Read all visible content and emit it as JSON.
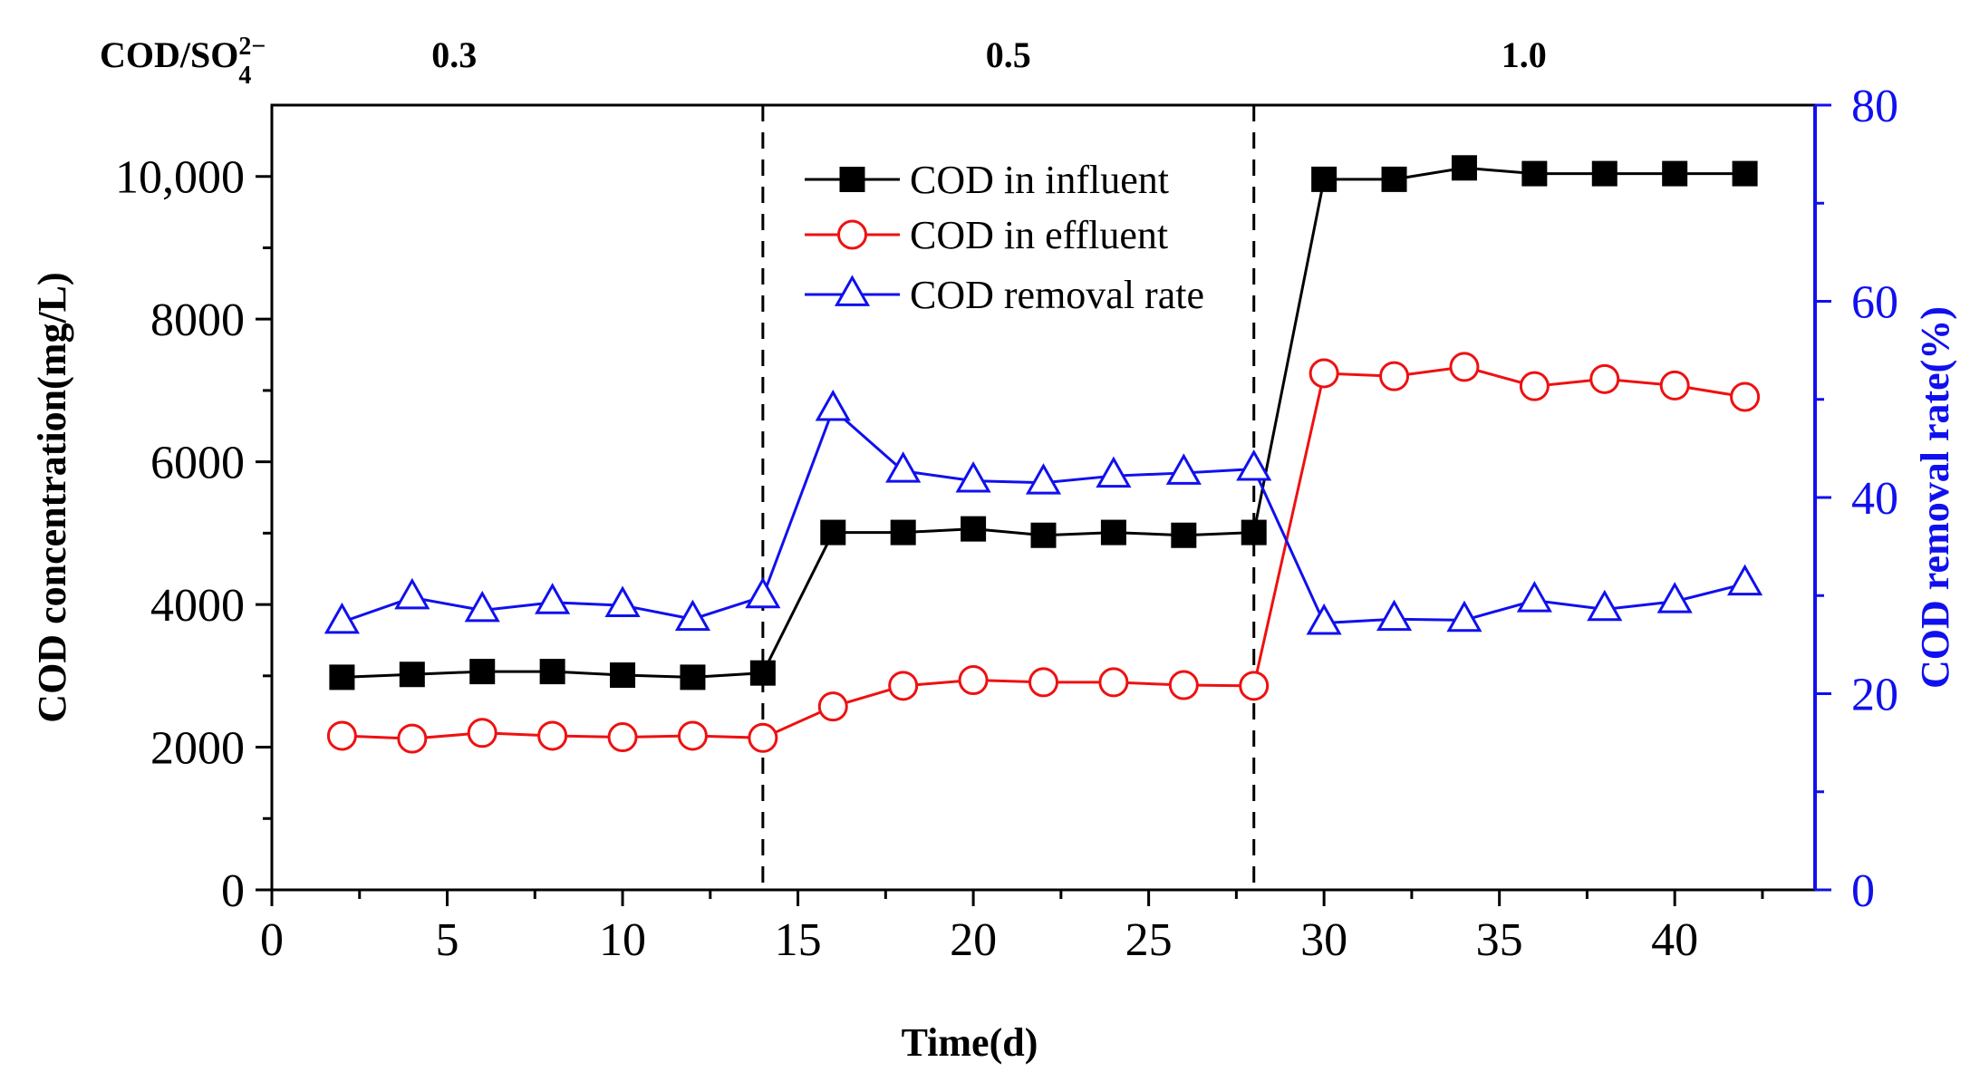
{
  "chart_data": {
    "type": "line",
    "xlabel": "Time(d)",
    "ylabel": "COD concentration(mg/L)",
    "y2label": "COD removal rate(%)",
    "xlim": [
      0,
      44
    ],
    "ylim": [
      0,
      11000
    ],
    "y2lim": [
      0,
      80
    ],
    "x_ticks": [
      "0",
      "5",
      "10",
      "15",
      "20",
      "25",
      "30",
      "35",
      "40"
    ],
    "y_ticks": [
      "0",
      "2000",
      "4000",
      "6000",
      "8000",
      "10,000"
    ],
    "y2_ticks": [
      "0",
      "20",
      "40",
      "60",
      "80"
    ],
    "phase_title": "COD/SO",
    "phase_title_sub": "4",
    "phase_title_sup": "2−",
    "phases": [
      {
        "label": "0.3",
        "x_start": 0,
        "x_end": 14
      },
      {
        "label": "0.5",
        "x_start": 14,
        "x_end": 28
      },
      {
        "label": "1.0",
        "x_start": 28,
        "x_end": 44
      }
    ],
    "phase_boundaries": [
      14,
      28
    ],
    "legend_position": "top-center",
    "series": [
      {
        "name": "COD in influent",
        "axis": "left",
        "color": "#000000",
        "marker": "square",
        "x": [
          2,
          4,
          6,
          8,
          10,
          12,
          14,
          16,
          18,
          20,
          22,
          24,
          26,
          28,
          30,
          32,
          34,
          36,
          38,
          40,
          42
        ],
        "values": [
          2980,
          3020,
          3060,
          3060,
          3010,
          2980,
          3040,
          5010,
          5010,
          5060,
          4970,
          5010,
          4970,
          5010,
          9960,
          9960,
          10120,
          10040,
          10040,
          10040,
          10040
        ]
      },
      {
        "name": "COD in effluent",
        "axis": "left",
        "color": "#ee1111",
        "marker": "circle",
        "x": [
          2,
          4,
          6,
          8,
          10,
          12,
          14,
          16,
          18,
          20,
          22,
          24,
          26,
          28,
          30,
          32,
          34,
          36,
          38,
          40,
          42
        ],
        "values": [
          2160,
          2120,
          2200,
          2160,
          2140,
          2160,
          2130,
          2570,
          2860,
          2940,
          2910,
          2910,
          2870,
          2860,
          7240,
          7200,
          7330,
          7060,
          7160,
          7070,
          6910
        ]
      },
      {
        "name": "COD removal rate",
        "axis": "right",
        "color": "#1010ee",
        "marker": "triangle",
        "x": [
          2,
          4,
          6,
          8,
          10,
          12,
          14,
          16,
          18,
          20,
          22,
          24,
          26,
          28,
          30,
          32,
          34,
          36,
          38,
          40,
          42
        ],
        "values": [
          27.3,
          29.8,
          28.5,
          29.3,
          29.0,
          27.6,
          29.9,
          49.0,
          42.7,
          41.7,
          41.5,
          42.2,
          42.5,
          42.9,
          27.2,
          27.6,
          27.5,
          29.5,
          28.6,
          29.4,
          31.2
        ]
      }
    ]
  }
}
